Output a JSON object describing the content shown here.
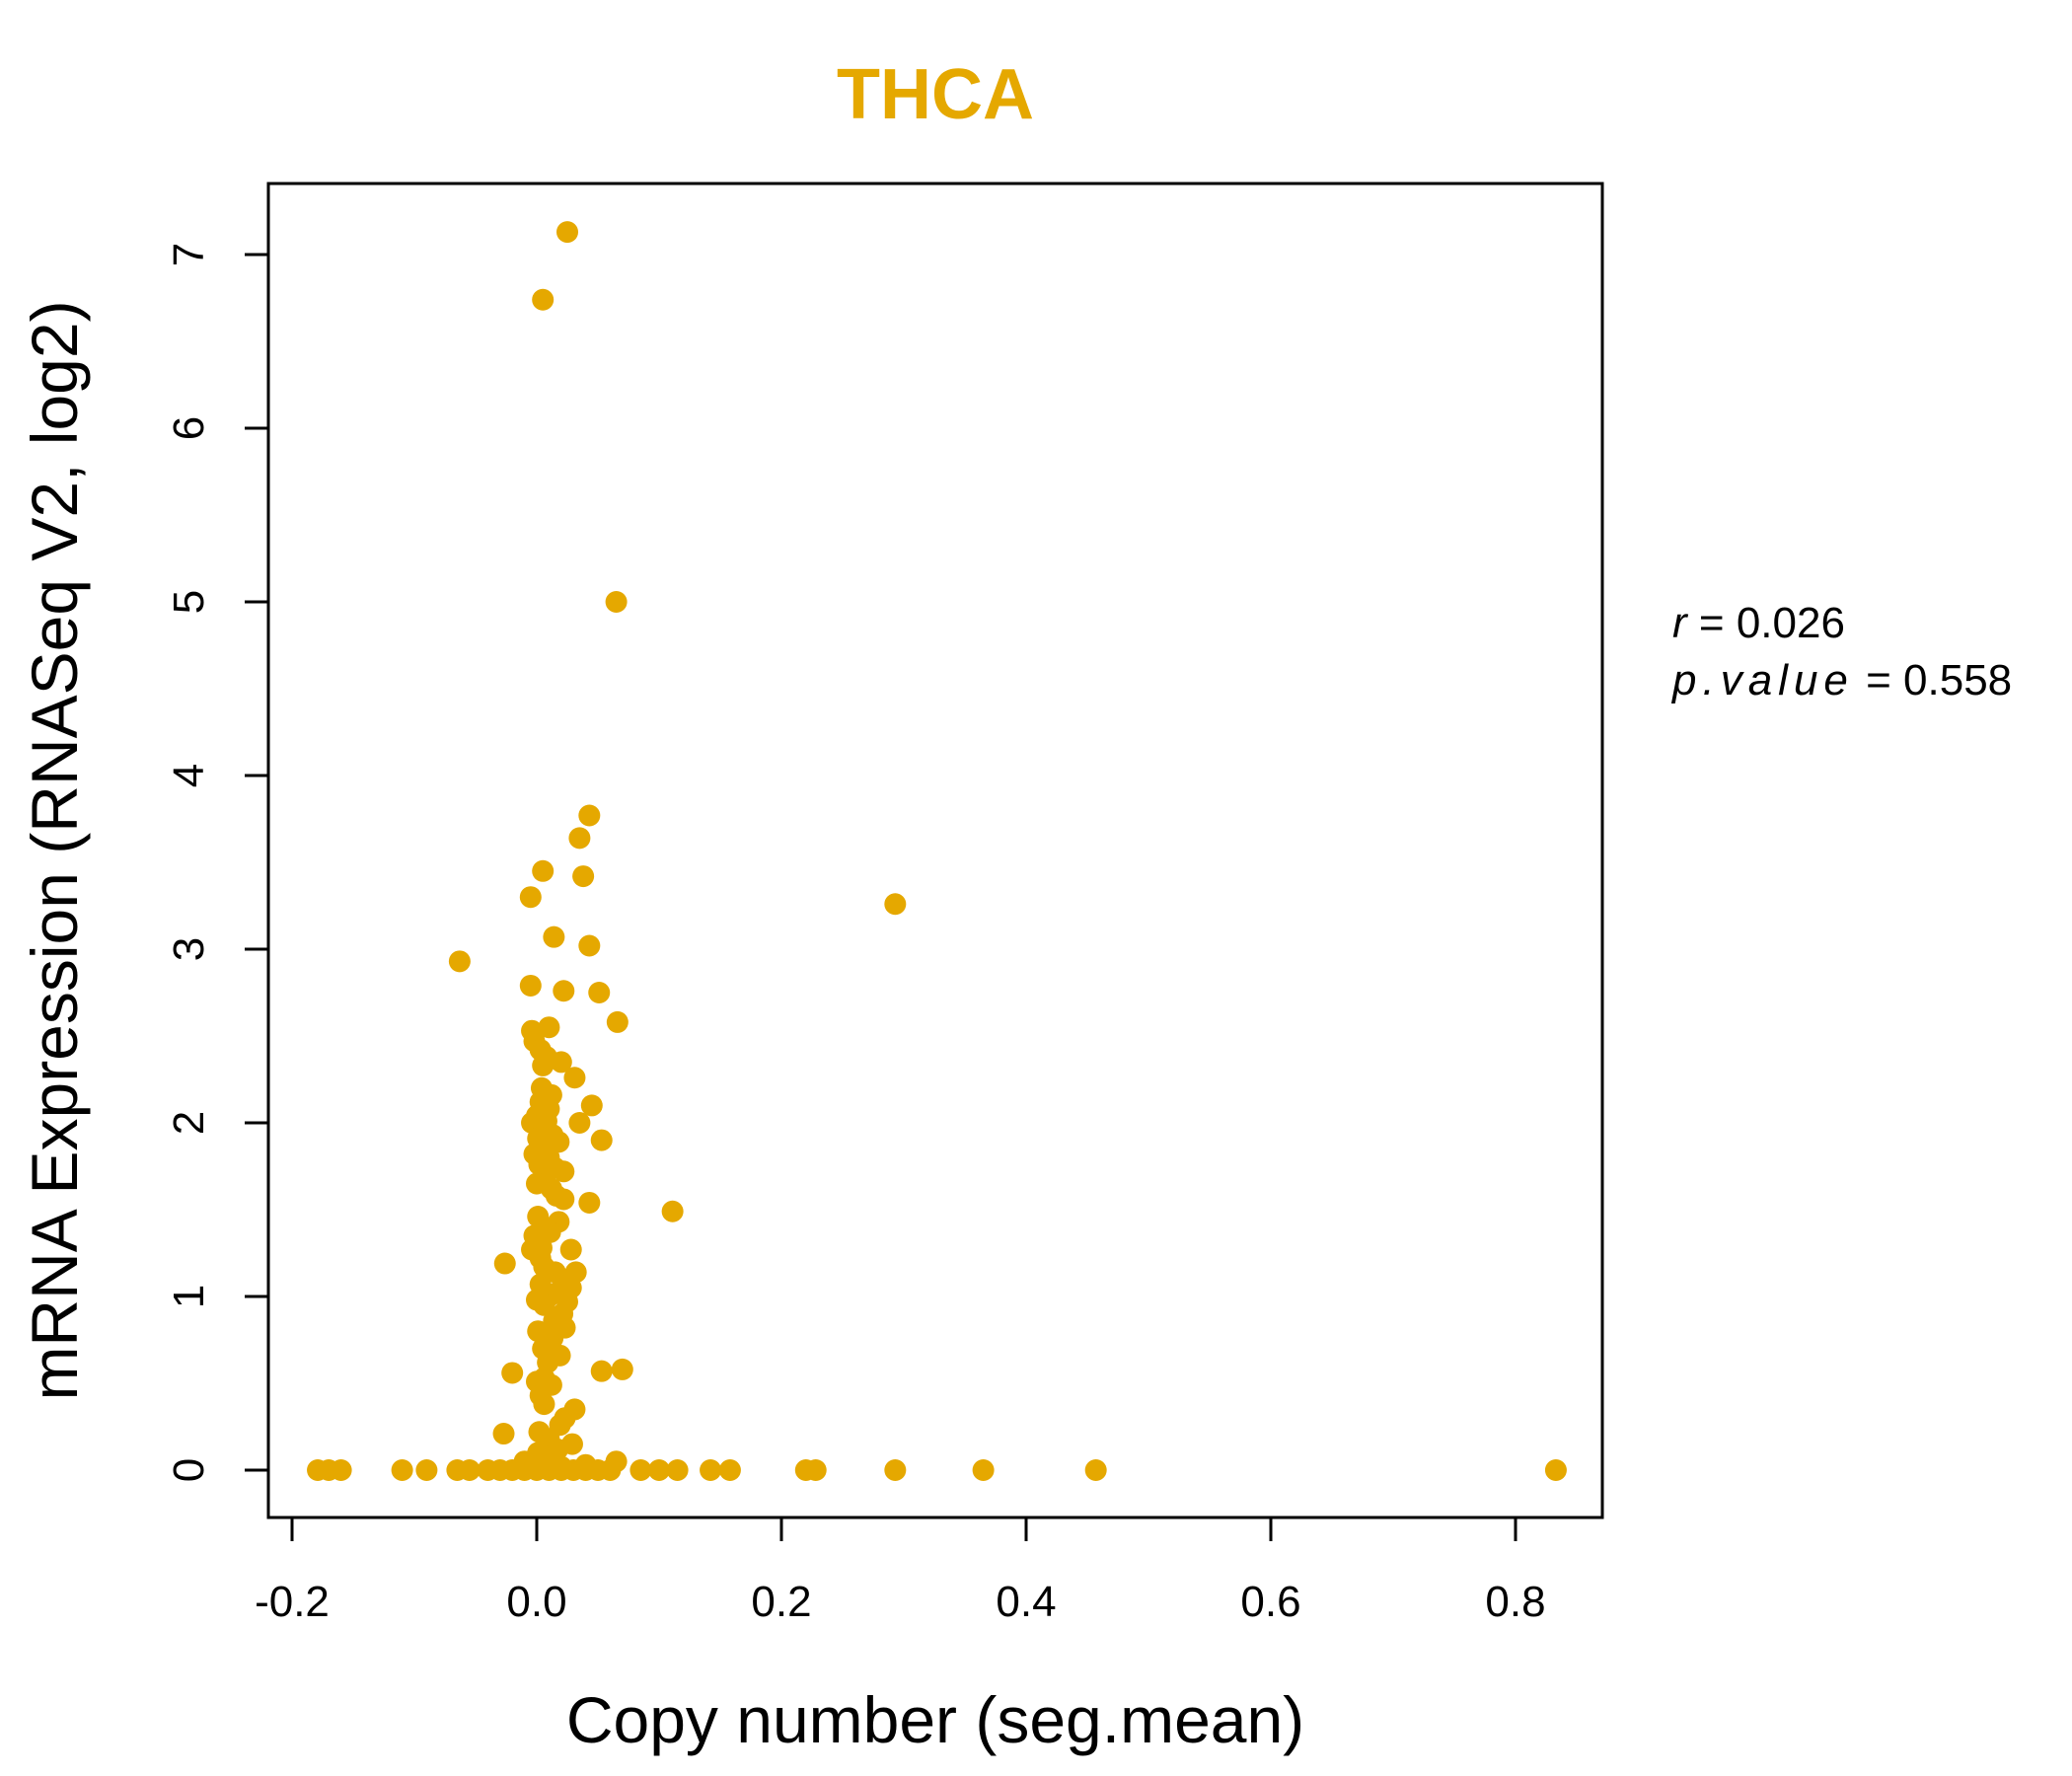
{
  "chart_data": {
    "type": "scatter",
    "title": "THCA",
    "xlabel": "Copy number (seg.mean)",
    "ylabel": "mRNA Expression (RNASeq V2, log2)",
    "xlim": [
      -0.2,
      0.85
    ],
    "ylim": [
      0,
      7.2
    ],
    "x_ticks": [
      "-0.2",
      "0.0",
      "0.2",
      "0.4",
      "0.6",
      "0.8"
    ],
    "x_tick_values": [
      -0.2,
      0.0,
      0.2,
      0.4,
      0.6,
      0.8
    ],
    "y_ticks": [
      "0",
      "1",
      "2",
      "3",
      "4",
      "5",
      "6",
      "7"
    ],
    "y_tick_values": [
      0,
      1,
      2,
      3,
      4,
      5,
      6,
      7
    ],
    "color": "#E5A800",
    "annotation": {
      "r_label": "r",
      "r_value": "0.026",
      "p_label": "p.value",
      "p_value": "0.558"
    },
    "points": [
      [
        0.025,
        7.13
      ],
      [
        0.005,
        6.74
      ],
      [
        0.065,
        5.0
      ],
      [
        0.043,
        3.77
      ],
      [
        0.035,
        3.64
      ],
      [
        0.005,
        3.45
      ],
      [
        0.038,
        3.42
      ],
      [
        -0.005,
        3.3
      ],
      [
        0.293,
        3.26
      ],
      [
        0.014,
        3.07
      ],
      [
        0.043,
        3.02
      ],
      [
        -0.063,
        2.93
      ],
      [
        -0.005,
        2.79
      ],
      [
        0.022,
        2.76
      ],
      [
        0.051,
        2.75
      ],
      [
        0.066,
        2.58
      ],
      [
        0.01,
        2.55
      ],
      [
        -0.004,
        2.53
      ],
      [
        -0.002,
        2.47
      ],
      [
        0.003,
        2.42
      ],
      [
        0.008,
        2.38
      ],
      [
        0.02,
        2.35
      ],
      [
        0.005,
        2.33
      ],
      [
        0.031,
        2.26
      ],
      [
        0.004,
        2.2
      ],
      [
        0.012,
        2.16
      ],
      [
        0.003,
        2.12
      ],
      [
        0.045,
        2.1
      ],
      [
        0.01,
        2.08
      ],
      [
        0.0,
        2.04
      ],
      [
        0.008,
        2.01
      ],
      [
        -0.004,
        2.0
      ],
      [
        0.035,
        2.0
      ],
      [
        0.006,
        1.97
      ],
      [
        0.013,
        1.93
      ],
      [
        0.001,
        1.91
      ],
      [
        0.053,
        1.9
      ],
      [
        0.018,
        1.89
      ],
      [
        0.004,
        1.86
      ],
      [
        -0.002,
        1.82
      ],
      [
        0.01,
        1.8
      ],
      [
        0.002,
        1.76
      ],
      [
        0.015,
        1.74
      ],
      [
        0.022,
        1.72
      ],
      [
        0.007,
        1.7
      ],
      [
        0.0,
        1.65
      ],
      [
        0.012,
        1.62
      ],
      [
        0.016,
        1.58
      ],
      [
        0.022,
        1.56
      ],
      [
        0.043,
        1.54
      ],
      [
        0.111,
        1.49
      ],
      [
        0.001,
        1.46
      ],
      [
        0.018,
        1.43
      ],
      [
        0.006,
        1.4
      ],
      [
        0.011,
        1.37
      ],
      [
        -0.002,
        1.35
      ],
      [
        0.0,
        1.3
      ],
      [
        0.004,
        1.28
      ],
      [
        -0.004,
        1.27
      ],
      [
        0.028,
        1.27
      ],
      [
        0.003,
        1.22
      ],
      [
        -0.026,
        1.19
      ],
      [
        0.006,
        1.17
      ],
      [
        0.015,
        1.14
      ],
      [
        0.032,
        1.14
      ],
      [
        0.021,
        1.1
      ],
      [
        0.003,
        1.07
      ],
      [
        0.028,
        1.05
      ],
      [
        0.016,
        1.02
      ],
      [
        0.01,
        1.0
      ],
      [
        0.0,
        0.98
      ],
      [
        0.025,
        0.97
      ],
      [
        0.006,
        0.95
      ],
      [
        0.021,
        0.9
      ],
      [
        0.014,
        0.86
      ],
      [
        0.023,
        0.82
      ],
      [
        0.001,
        0.8
      ],
      [
        0.013,
        0.76
      ],
      [
        0.005,
        0.7
      ],
      [
        0.019,
        0.66
      ],
      [
        0.009,
        0.62
      ],
      [
        0.053,
        0.57
      ],
      [
        0.07,
        0.58
      ],
      [
        -0.02,
        0.56
      ],
      [
        0.006,
        0.53
      ],
      [
        0.0,
        0.51
      ],
      [
        0.012,
        0.49
      ],
      [
        0.003,
        0.43
      ],
      [
        0.006,
        0.38
      ],
      [
        0.031,
        0.35
      ],
      [
        0.023,
        0.3
      ],
      [
        0.019,
        0.26
      ],
      [
        0.002,
        0.22
      ],
      [
        -0.027,
        0.21
      ],
      [
        0.01,
        0.18
      ],
      [
        0.029,
        0.15
      ],
      [
        0.017,
        0.12
      ],
      [
        0.001,
        0.1
      ],
      [
        0.006,
        0.08
      ],
      [
        0.065,
        0.05
      ],
      [
        0.04,
        0.03
      ],
      [
        -0.01,
        0.05
      ],
      [
        0.02,
        0.02
      ],
      [
        -0.179,
        0.0
      ],
      [
        -0.17,
        0.0
      ],
      [
        -0.16,
        0.0
      ],
      [
        -0.11,
        0.0
      ],
      [
        -0.09,
        0.0
      ],
      [
        -0.065,
        0.0
      ],
      [
        -0.055,
        0.0
      ],
      [
        -0.04,
        0.0
      ],
      [
        -0.03,
        0.0
      ],
      [
        -0.02,
        0.0
      ],
      [
        -0.01,
        0.0
      ],
      [
        0.0,
        0.0
      ],
      [
        0.01,
        0.0
      ],
      [
        0.02,
        0.0
      ],
      [
        0.03,
        0.0
      ],
      [
        0.04,
        0.0
      ],
      [
        0.05,
        0.0
      ],
      [
        0.06,
        0.0
      ],
      [
        0.085,
        0.0
      ],
      [
        0.1,
        0.0
      ],
      [
        0.115,
        0.0
      ],
      [
        0.142,
        0.0
      ],
      [
        0.158,
        0.0
      ],
      [
        0.22,
        0.0
      ],
      [
        0.228,
        0.0
      ],
      [
        0.293,
        0.0
      ],
      [
        0.365,
        0.0
      ],
      [
        0.457,
        0.0
      ],
      [
        0.833,
        0.0
      ]
    ]
  }
}
